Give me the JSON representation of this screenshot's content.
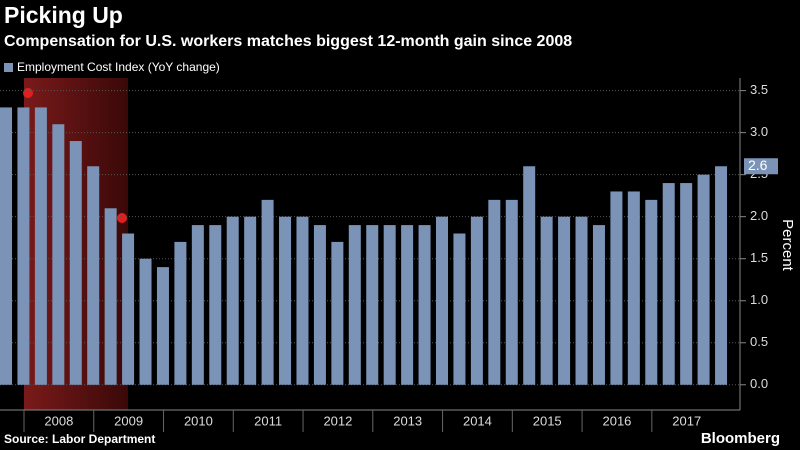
{
  "chart_data": {
    "type": "bar",
    "title": "Picking Up",
    "subtitle": "Compensation for U.S. workers matches biggest 12-month gain since 2008",
    "y_label": "Percent",
    "source": "Source: Labor Department",
    "brand": "Bloomberg",
    "categories": [
      null,
      null,
      null,
      null,
      null,
      null,
      null,
      null,
      null,
      null,
      null,
      null,
      null,
      null,
      null,
      null,
      null,
      null,
      null,
      null,
      null,
      null,
      null,
      null,
      null,
      null,
      null,
      null,
      null,
      null,
      null,
      null,
      null,
      null,
      null,
      null,
      null,
      null,
      null,
      null,
      null,
      null
    ],
    "year_labels": [
      "2008",
      "2009",
      "2010",
      "2011",
      "2012",
      "2013",
      "2014",
      "2015",
      "2016",
      "2017"
    ],
    "series": [
      {
        "name": "Employment Cost Index (YoY change)",
        "color": "#7b93b7",
        "values": [
          3.3,
          3.3,
          3.3,
          3.1,
          2.9,
          2.6,
          2.1,
          1.8,
          1.5,
          1.4,
          1.7,
          1.9,
          1.9,
          2.0,
          2.0,
          2.2,
          2.0,
          2.0,
          1.9,
          1.7,
          1.9,
          1.9,
          1.9,
          1.9,
          1.9,
          2.0,
          1.8,
          2.0,
          2.2,
          2.2,
          2.6,
          2.0,
          2.0,
          2.0,
          1.9,
          2.3,
          2.3,
          2.2,
          2.4,
          2.4,
          2.5,
          2.6
        ]
      }
    ],
    "ylim": [
      -0.3,
      3.65
    ],
    "yticks": [
      {
        "value": 0,
        "label": "0.0"
      },
      0.5,
      {
        "value": 1,
        "label": "1.0"
      },
      1.5,
      {
        "value": 2,
        "label": "2.0"
      },
      2.5,
      {
        "value": 3,
        "label": "3.0"
      },
      3.5
    ],
    "grid": true
  }
}
